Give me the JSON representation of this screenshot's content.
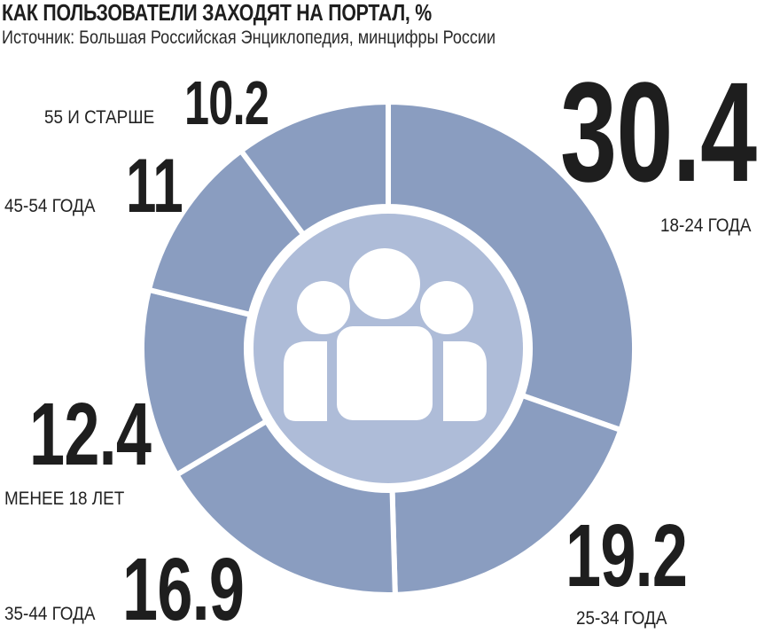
{
  "header": {
    "title": "КАК ПОЛЬЗОВАТЕЛИ ЗАХОДЯТ НА ПОРТАЛ, %",
    "subtitle": "Источник: Большая Российская Энциклопедия, минцифры России"
  },
  "chart_data": {
    "type": "pie",
    "variant": "donut",
    "title": "КАК ПОЛЬЗОВАТЕЛИ ЗАХОДЯТ НА ПОРТАЛ, %",
    "categories": [
      "18-24 ГОДА",
      "25-34 ГОДА",
      "35-44 ГОДА",
      "МЕНЕЕ 18 ЛЕТ",
      "45-54 ГОДА",
      "55 И СТАРШЕ"
    ],
    "values": [
      30.4,
      19.2,
      16.9,
      12.4,
      11,
      10.2
    ],
    "value_labels": [
      "30.4",
      "19.2",
      "16.9",
      "12.4",
      "11",
      "10.2"
    ],
    "start": "top",
    "direction": "clockwise",
    "colors": {
      "slice": "#8a9dc0",
      "center": "#aebcd8",
      "icon": "#ffffff",
      "separator": "#ffffff"
    },
    "center_icon": "users-group-icon"
  }
}
